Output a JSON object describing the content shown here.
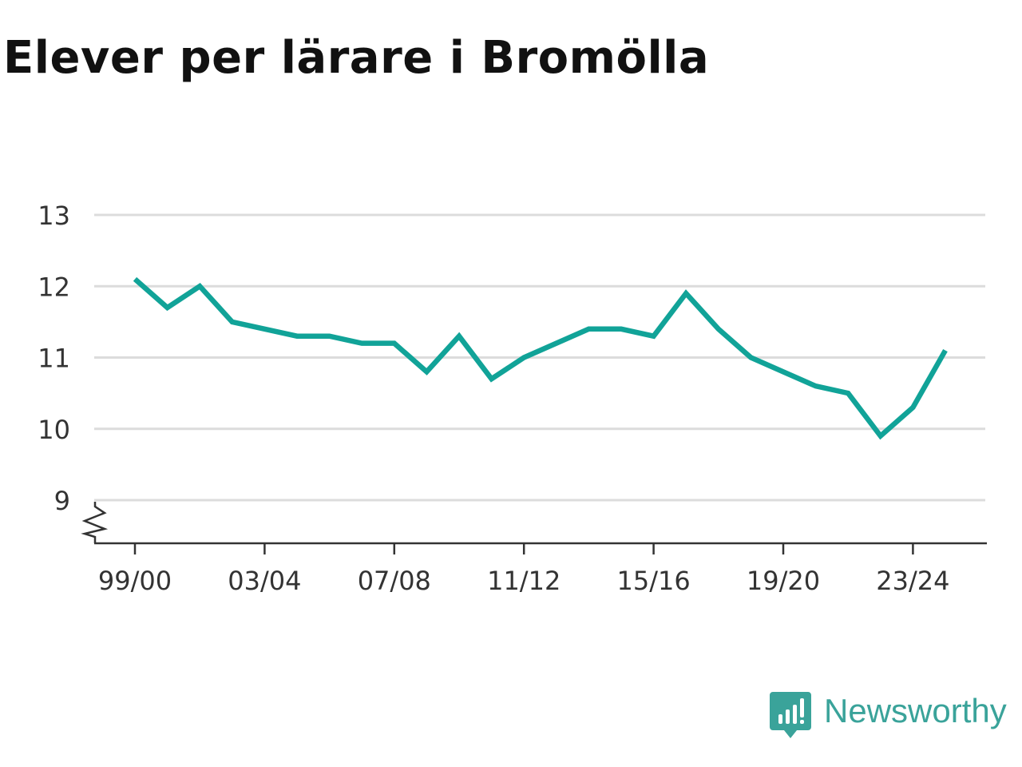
{
  "title": "Elever per lärare i Bromölla",
  "brand": {
    "name": "Newsworthy",
    "color": "#3aa39a"
  },
  "chart_data": {
    "type": "line",
    "title": "Elever per lärare i Bromölla",
    "xlabel": "",
    "ylabel": "",
    "ylim": [
      8.4,
      13
    ],
    "yticks": [
      9,
      10,
      11,
      12,
      13
    ],
    "y_axis_break": true,
    "grid": true,
    "line_color": "#11a398",
    "x": [
      "99/00",
      "00/01",
      "01/02",
      "02/03",
      "03/04",
      "04/05",
      "05/06",
      "06/07",
      "07/08",
      "08/09",
      "09/10",
      "10/11",
      "11/12",
      "12/13",
      "13/14",
      "14/15",
      "15/16",
      "16/17",
      "17/18",
      "18/19",
      "19/20",
      "20/21",
      "21/22",
      "22/23",
      "23/24",
      "24/25"
    ],
    "xticks": [
      "99/00",
      "03/04",
      "07/08",
      "11/12",
      "15/16",
      "19/20",
      "23/24"
    ],
    "series": [
      {
        "values": [
          12.1,
          11.7,
          12.0,
          11.5,
          11.4,
          11.3,
          11.3,
          11.2,
          11.2,
          10.8,
          11.3,
          10.7,
          11.0,
          11.2,
          11.4,
          11.4,
          11.3,
          11.9,
          11.4,
          11.0,
          10.8,
          10.6,
          10.5,
          9.9,
          10.3,
          11.1
        ]
      }
    ]
  }
}
